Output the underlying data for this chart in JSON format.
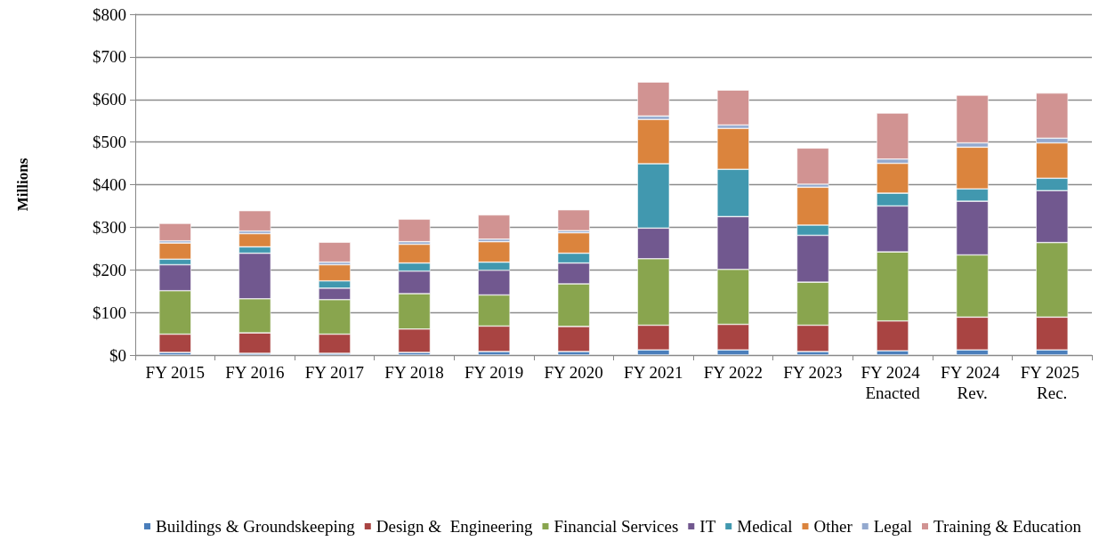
{
  "chart_data": {
    "type": "bar",
    "stacked": true,
    "ylabel": "Millions",
    "categories": [
      "FY 2015",
      "FY 2016",
      "FY 2017",
      "FY 2018",
      "FY 2019",
      "FY 2020",
      "FY 2021",
      "FY 2022",
      "FY 2023",
      "FY 2024 Enacted",
      "FY 2024 Rev.",
      "FY 2025 Rec."
    ],
    "series": [
      {
        "name": "Buildings & Groundskeeping",
        "color": "#4a7ebb",
        "values": [
          6,
          4,
          4,
          6,
          8,
          8,
          12,
          12,
          8,
          10,
          12,
          12
        ]
      },
      {
        "name": "Design &  Engineering",
        "color": "#a94442",
        "values": [
          43,
          48,
          45,
          55,
          60,
          59,
          58,
          60,
          62,
          70,
          77,
          77
        ]
      },
      {
        "name": "Financial Services",
        "color": "#89a54e",
        "values": [
          102,
          80,
          81,
          83,
          73,
          100,
          156,
          129,
          101,
          162,
          146,
          175
        ]
      },
      {
        "name": "IT",
        "color": "#71588f",
        "values": [
          61,
          107,
          27,
          53,
          58,
          49,
          72,
          124,
          110,
          108,
          126,
          122
        ]
      },
      {
        "name": "Medical",
        "color": "#4198af",
        "values": [
          13,
          15,
          17,
          19,
          19,
          23,
          151,
          111,
          24,
          30,
          29,
          29
        ]
      },
      {
        "name": "Other",
        "color": "#db843d",
        "values": [
          38,
          31,
          38,
          44,
          48,
          48,
          104,
          96,
          89,
          70,
          98,
          83
        ]
      },
      {
        "name": "Legal",
        "color": "#93a9cf",
        "values": [
          5,
          6,
          6,
          6,
          6,
          5,
          8,
          8,
          7,
          10,
          10,
          11
        ]
      },
      {
        "name": "Training & Education",
        "color": "#d19392",
        "values": [
          41,
          48,
          47,
          53,
          57,
          49,
          80,
          82,
          85,
          108,
          112,
          106
        ]
      }
    ],
    "ylim": [
      0,
      800
    ],
    "yticks": [
      {
        "value": 0,
        "label": "$0"
      },
      {
        "value": 100,
        "label": "$100"
      },
      {
        "value": 200,
        "label": "$200"
      },
      {
        "value": 300,
        "label": "$300"
      },
      {
        "value": 400,
        "label": "$400"
      },
      {
        "value": 500,
        "label": "$500"
      },
      {
        "value": 600,
        "label": "$600"
      },
      {
        "value": 700,
        "label": "$700"
      },
      {
        "value": 800,
        "label": "$800"
      }
    ],
    "grid": "y",
    "legend": "bottom"
  }
}
